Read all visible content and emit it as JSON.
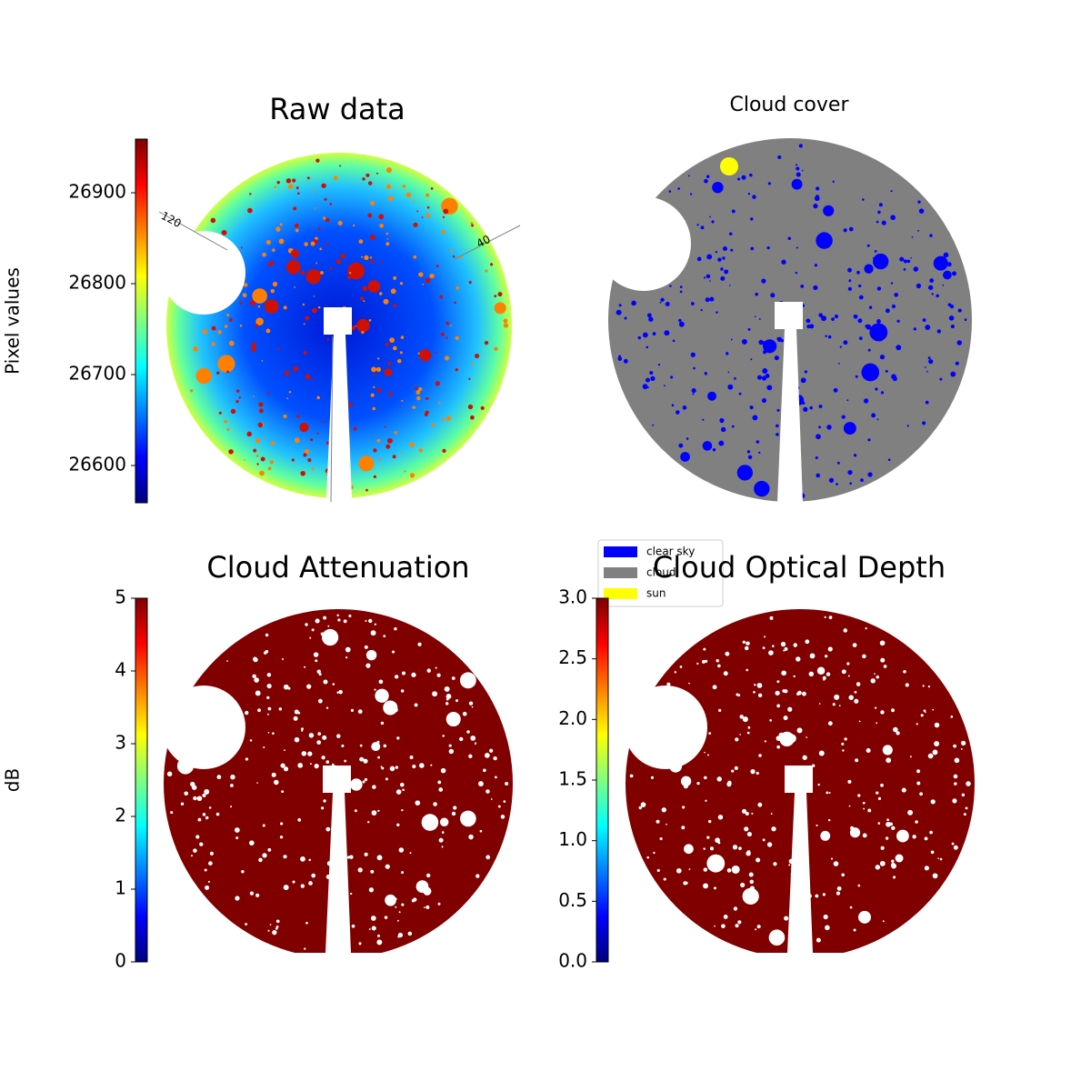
{
  "chart_data": [
    {
      "type": "image",
      "title": "Raw data",
      "annotations": [
        "120",
        "40"
      ],
      "colorbar": {
        "label": "Pixel values",
        "cmap": "jet",
        "lim": [
          26559,
          26959
        ],
        "ticks": [
          26600,
          26700,
          26800,
          26900
        ]
      }
    },
    {
      "type": "image",
      "title": "Cloud cover",
      "legend": {
        "series": [
          {
            "name": "clear sky",
            "color": "#0000ff"
          },
          {
            "name": "cloud",
            "color": "#808080"
          },
          {
            "name": "sun",
            "color": "#ffff00"
          }
        ]
      }
    },
    {
      "type": "image",
      "title": "Cloud Attenuation",
      "colorbar": {
        "label": "dB",
        "cmap": "jet",
        "lim": [
          0,
          5
        ],
        "ticks": [
          0,
          1,
          2,
          3,
          4,
          5
        ]
      }
    },
    {
      "type": "image",
      "title": "Cloud Optical Depth",
      "colorbar": {
        "cmap": "jet",
        "lim": [
          0,
          3
        ],
        "ticks": [
          {
            "value": 0,
            "label": "0.0"
          },
          0.5,
          {
            "value": 1,
            "label": "1.0"
          },
          1.5,
          {
            "value": 2,
            "label": "2.0"
          },
          2.5,
          {
            "value": 3,
            "label": "3.0"
          }
        ]
      }
    }
  ]
}
